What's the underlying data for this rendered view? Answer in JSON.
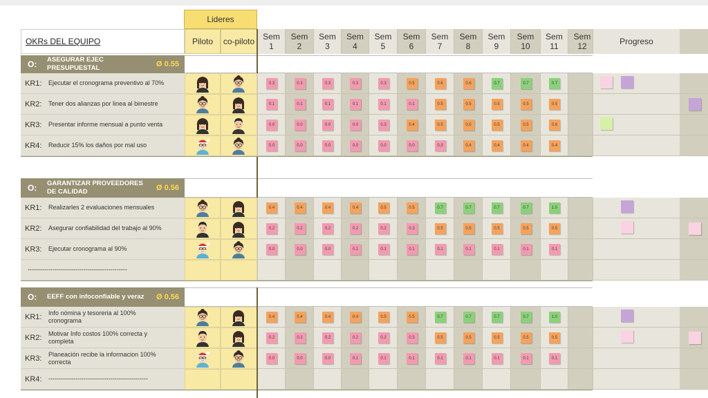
{
  "header": {
    "team_okrs": "OKRs DEL EQUIPO",
    "leaders": "Lideres",
    "pilot": "Piloto",
    "copilot": "co-piloto",
    "weeks": [
      {
        "top": "Sem",
        "num": "1"
      },
      {
        "top": "Sem",
        "num": "2"
      },
      {
        "top": "Sem",
        "num": "3"
      },
      {
        "top": "Sem",
        "num": "4"
      },
      {
        "top": "Sem",
        "num": "5"
      },
      {
        "top": "Sem",
        "num": "6"
      },
      {
        "top": "Sem",
        "num": "7"
      },
      {
        "top": "Sem",
        "num": "8"
      },
      {
        "top": "Sem",
        "num": "9"
      },
      {
        "top": "Sem",
        "num": "10"
      },
      {
        "top": "Sem",
        "num": "11"
      },
      {
        "top": "Sem",
        "num": "12"
      }
    ],
    "progress": "Progreso"
  },
  "colors": {
    "objective_bg": "#968f72",
    "leaders_bg": "#f8e9a5",
    "leaders_header_bg": "#f7dd72",
    "kr_bg": "#e4e2d6",
    "week_light": "#e8e6dc",
    "week_dark": "#d3cfbf",
    "note_pink": "#f39ab1",
    "note_orange": "#f5a25c",
    "note_green": "#8bd17b",
    "note_light_pink": "#f9d3e1",
    "note_purple": "#c5a4d8",
    "note_light_green": "#d6f0a6",
    "border_olive": "#6f6236"
  },
  "sections": [
    {
      "label": "O:",
      "title": [
        "ASEGURAR EJEC PRESUPUESTAL"
      ],
      "score": "Ø 0.55",
      "rows": [
        {
          "id": "KR1:",
          "text": [
            "Ejecutar el cronograma preventivo al 70%"
          ],
          "pilot": "f1",
          "copilot": "f2",
          "weeks": [
            "0.3",
            "0.3",
            "0.3",
            "0.3",
            "0.3",
            "0.5",
            "0.6",
            "0.6",
            "0.7",
            "0.7",
            "0.7"
          ],
          "progress": [
            {
              "col": 0,
              "color": "note_light_pink"
            },
            {
              "col": 1,
              "color": "note_purple"
            }
          ]
        },
        {
          "id": "KR2:",
          "text": [
            "Tener dos alianzas por linea al bimestre"
          ],
          "pilot": "f2",
          "copilot": "f1",
          "weeks": [
            "0.1",
            "0.1",
            "0.1",
            "0.1",
            "0.1",
            "0.1",
            "0.5",
            "0.5",
            "0.5",
            "0.5",
            "0.5"
          ],
          "progress": [
            {
              "col": 3,
              "color": "note_purple"
            }
          ]
        },
        {
          "id": "KR3:",
          "text": [
            "Presentar informe mensual a punto venta"
          ],
          "pilot": "f1",
          "copilot": "m1",
          "weeks": [
            "0.0",
            "0.0",
            "0.0",
            "0.0",
            "0.3",
            "0.4",
            "0.5",
            "0.5",
            "0.5",
            "0.5",
            "0.6"
          ],
          "progress": [
            {
              "col": 0,
              "color": "note_light_green"
            }
          ]
        },
        {
          "id": "KR4:",
          "text": [
            "Reducir 15% los daños por mal uso"
          ],
          "pilot": "santa",
          "copilot": "f2",
          "weeks": [
            "0.0",
            "0.0",
            "0.0",
            "0.0",
            "0.0",
            "0.0",
            "0.3",
            "0.4",
            "0.4",
            "0.4",
            "0.4"
          ],
          "progress": []
        }
      ]
    },
    {
      "label": "O:",
      "title": [
        "GARANTIZAR PROVEEDORES",
        "DE CALIDAD"
      ],
      "score": "Ø 0.56",
      "rows": [
        {
          "id": "KR1:",
          "text": [
            "Realizarles 2 evaluaciones mensuales"
          ],
          "pilot": "f2",
          "copilot": "f1",
          "weeks": [
            "0.4",
            "0.4",
            "0.4",
            "0.4",
            "0.5",
            "0.5",
            "0.7",
            "0.7",
            "0.7",
            "0.7",
            "1.0"
          ],
          "progress": [
            {
              "col": 1,
              "color": "note_purple"
            }
          ]
        },
        {
          "id": "KR2:",
          "text": [
            "Asegurar confiabilidad del trabajo al 90%"
          ],
          "pilot": "m1",
          "copilot": "f1",
          "weeks": [
            "0.2",
            "0.2",
            "0.2",
            "0.2",
            "0.2",
            "0.3",
            "0.5",
            "0.5",
            "0.5",
            "0.5",
            "0.5"
          ],
          "progress": [
            {
              "col": 1,
              "color": "note_light_pink"
            },
            {
              "col": 3,
              "color": "note_light_pink"
            }
          ]
        },
        {
          "id": "KR3:",
          "text": [
            "Ejecutar cronograma al 90%"
          ],
          "pilot": "santa",
          "copilot": "f2",
          "weeks": [
            "0.0",
            "0.0",
            "0.0",
            "0.1",
            "0.1",
            "0.1",
            "0.1",
            "0.1",
            "0.1",
            "0.1",
            "0.1"
          ],
          "progress": []
        },
        {
          "id": "",
          "text": [
            "------------------------------------------------"
          ],
          "pilot": "",
          "copilot": "",
          "weeks": [],
          "progress": []
        }
      ]
    },
    {
      "label": "O:",
      "title": [
        "EEFF con infoconfiable y veraz"
      ],
      "score": "Ø 0.56",
      "rows": [
        {
          "id": "KR1:",
          "text": [
            "Info nómina y tesoreria al 100%",
            "cronograma"
          ],
          "pilot": "f2",
          "copilot": "f1",
          "weeks": [
            "0.4",
            "0.4",
            "0.4",
            "0.4",
            "0.5",
            "0.5",
            "0.7",
            "0.7",
            "0.7",
            "0.7",
            "1.0"
          ],
          "progress": [
            {
              "col": 1,
              "color": "note_purple"
            }
          ]
        },
        {
          "id": "KR2:",
          "text": [
            "Motivar Info costos 100% correcta y",
            "completa"
          ],
          "pilot": "m1",
          "copilot": "f1",
          "weeks": [
            "0.2",
            "0.2",
            "0.2",
            "0.2",
            "0.2",
            "0.3",
            "0.5",
            "0.5",
            "0.5",
            "0.5",
            "0.5"
          ],
          "progress": [
            {
              "col": 1,
              "color": "note_light_pink"
            },
            {
              "col": 3,
              "color": "note_light_pink"
            }
          ]
        },
        {
          "id": "KR3:",
          "text": [
            "Planeación recibe la informacion 100%",
            "correcta"
          ],
          "pilot": "santa",
          "copilot": "f2",
          "weeks": [
            "0.0",
            "0.0",
            "0.0",
            "0.1",
            "0.1",
            "0.1",
            "0.1",
            "0.1",
            "0.1",
            "0.1",
            "0.1"
          ],
          "progress": []
        },
        {
          "id": "KR4:",
          "text": [
            "------------------------------------------------"
          ],
          "pilot": "",
          "copilot": "",
          "weeks": [],
          "progress": []
        }
      ]
    }
  ]
}
